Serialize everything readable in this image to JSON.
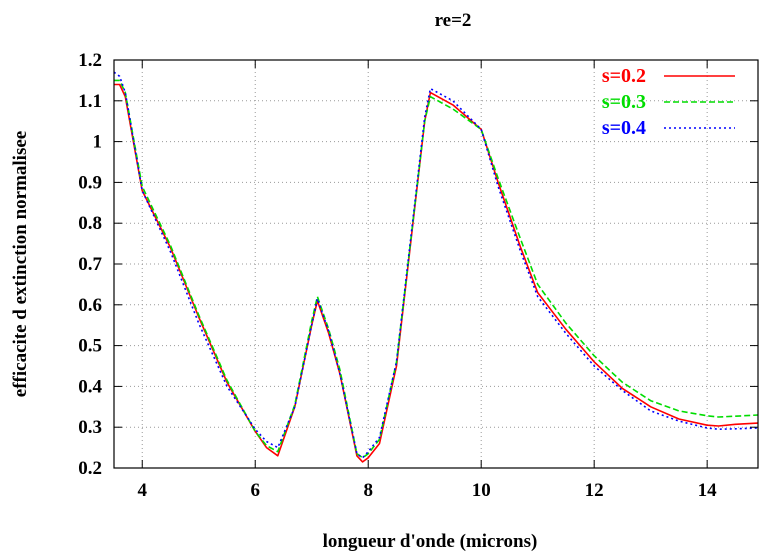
{
  "chart_data": {
    "type": "line",
    "title": "re=2",
    "xlabel": "longueur d'onde (microns)",
    "ylabel": "efficacite d extinction normalisee",
    "xlim": [
      3.5,
      14.9
    ],
    "ylim": [
      0.2,
      1.2
    ],
    "xticks": [
      4,
      6,
      8,
      10,
      12,
      14
    ],
    "yticks": [
      0.2,
      0.3,
      0.4,
      0.5,
      0.6,
      0.7,
      0.8,
      0.9,
      1,
      1.1,
      1.2
    ],
    "grid": true,
    "legend_position": "top-right",
    "series": [
      {
        "name": "s=0.2",
        "color": "#ff0000",
        "dash": "solid",
        "x": [
          3.5,
          3.6,
          3.7,
          4.0,
          4.5,
          5.0,
          5.5,
          6.0,
          6.2,
          6.4,
          6.7,
          7.0,
          7.1,
          7.3,
          7.5,
          7.8,
          7.9,
          8.0,
          8.2,
          8.5,
          9.0,
          9.1,
          9.5,
          10.0,
          10.3,
          10.7,
          11.0,
          11.5,
          12.0,
          12.5,
          13.0,
          13.5,
          14.0,
          14.2,
          14.5,
          14.9
        ],
        "y": [
          1.14,
          1.14,
          1.11,
          0.88,
          0.74,
          0.57,
          0.41,
          0.29,
          0.25,
          0.23,
          0.35,
          0.55,
          0.61,
          0.53,
          0.43,
          0.23,
          0.215,
          0.225,
          0.26,
          0.45,
          1.05,
          1.12,
          1.09,
          1.03,
          0.9,
          0.74,
          0.63,
          0.54,
          0.46,
          0.395,
          0.35,
          0.32,
          0.305,
          0.303,
          0.307,
          0.31
        ]
      },
      {
        "name": "s=0.3",
        "color": "#00dd00",
        "dash": "dashed",
        "x": [
          3.5,
          3.6,
          3.7,
          4.0,
          4.5,
          5.0,
          5.5,
          6.0,
          6.2,
          6.4,
          6.7,
          7.0,
          7.1,
          7.3,
          7.5,
          7.8,
          7.9,
          8.0,
          8.2,
          8.5,
          9.0,
          9.1,
          9.5,
          10.0,
          10.3,
          10.7,
          11.0,
          11.5,
          12.0,
          12.5,
          13.0,
          13.5,
          14.0,
          14.2,
          14.5,
          14.9
        ],
        "y": [
          1.15,
          1.15,
          1.12,
          0.89,
          0.745,
          0.575,
          0.415,
          0.29,
          0.255,
          0.24,
          0.355,
          0.56,
          0.62,
          0.54,
          0.44,
          0.235,
          0.225,
          0.235,
          0.27,
          0.46,
          1.05,
          1.11,
          1.08,
          1.03,
          0.91,
          0.76,
          0.65,
          0.555,
          0.475,
          0.41,
          0.365,
          0.34,
          0.328,
          0.325,
          0.327,
          0.33
        ]
      },
      {
        "name": "s=0.4",
        "color": "#0000ff",
        "dash": "dotted",
        "x": [
          3.5,
          3.6,
          3.7,
          4.0,
          4.5,
          5.0,
          5.5,
          6.0,
          6.2,
          6.4,
          6.7,
          7.0,
          7.1,
          7.3,
          7.5,
          7.8,
          7.9,
          8.0,
          8.2,
          8.5,
          9.0,
          9.1,
          9.5,
          10.0,
          10.3,
          10.7,
          11.0,
          11.5,
          12.0,
          12.5,
          13.0,
          13.5,
          14.0,
          14.2,
          14.5,
          14.9
        ],
        "y": [
          1.17,
          1.16,
          1.12,
          0.88,
          0.73,
          0.555,
          0.4,
          0.295,
          0.265,
          0.25,
          0.35,
          0.55,
          0.615,
          0.535,
          0.43,
          0.235,
          0.225,
          0.24,
          0.275,
          0.46,
          1.06,
          1.13,
          1.1,
          1.03,
          0.89,
          0.73,
          0.62,
          0.53,
          0.45,
          0.39,
          0.34,
          0.315,
          0.298,
          0.295,
          0.296,
          0.298
        ]
      }
    ]
  }
}
